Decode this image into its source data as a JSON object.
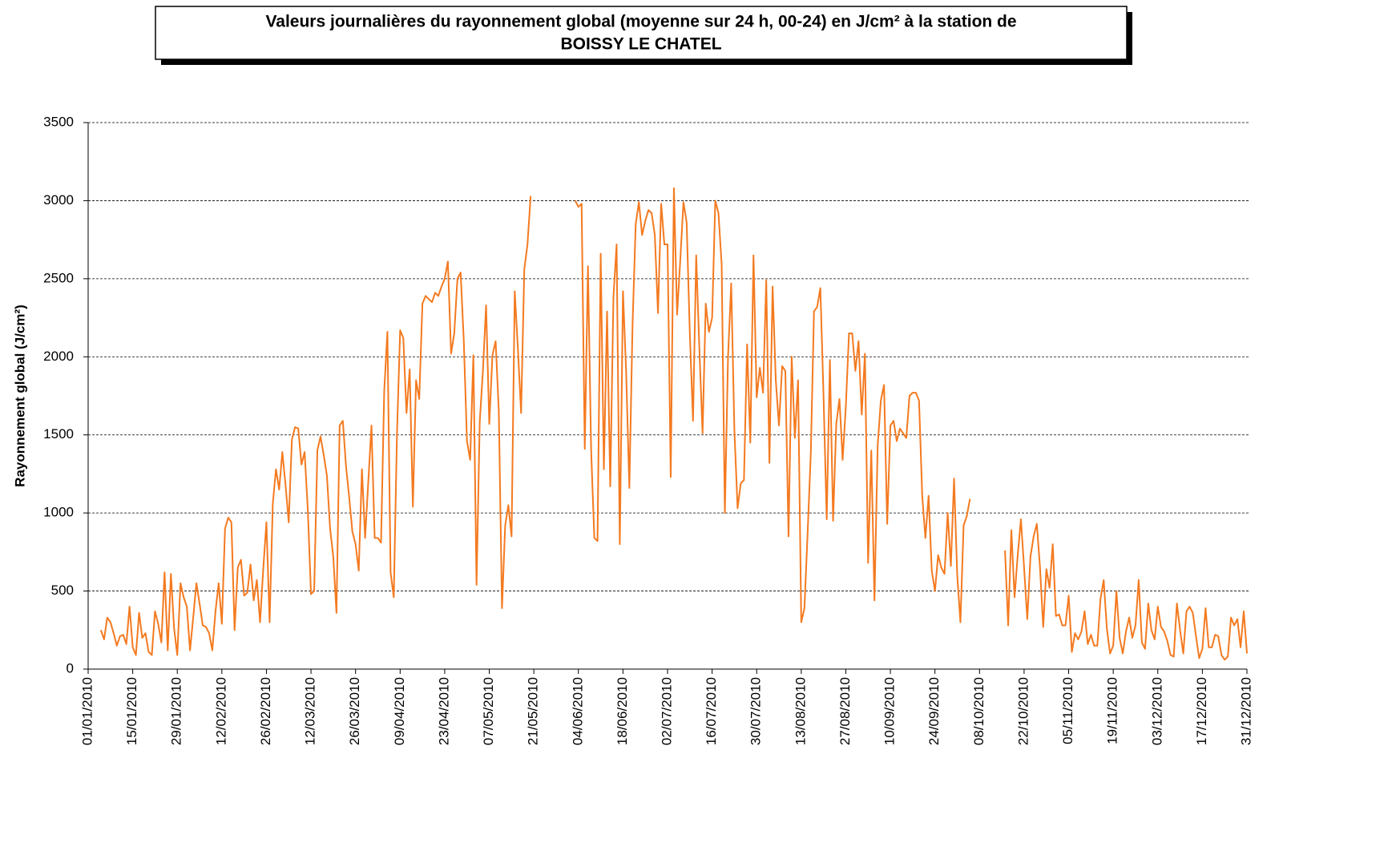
{
  "chart_data": {
    "type": "line",
    "title": [
      "Valeurs journalières du rayonnement global (moyenne sur 24 h, 00-24) en J/cm² à la station de",
      "BOISSY LE CHATEL"
    ],
    "y_label": "Rayonnement global (J/cm²)",
    "color": "#f47a20",
    "ylim": [
      0,
      3500
    ],
    "yticks": [
      0,
      500,
      1000,
      1500,
      2000,
      2500,
      3000,
      3500
    ],
    "grid": true,
    "categories": [
      "01/01/2010",
      null,
      null,
      null,
      null,
      null,
      null,
      null,
      null,
      null,
      null,
      null,
      null,
      null,
      "15/01/2010",
      null,
      null,
      null,
      null,
      null,
      null,
      null,
      null,
      null,
      null,
      null,
      null,
      null,
      "29/01/2010",
      null,
      null,
      null,
      null,
      null,
      null,
      null,
      null,
      null,
      null,
      null,
      null,
      null,
      "12/02/2010",
      null,
      null,
      null,
      null,
      null,
      null,
      null,
      null,
      null,
      null,
      null,
      null,
      null,
      "26/02/2010",
      null,
      null,
      null,
      null,
      null,
      null,
      null,
      null,
      null,
      null,
      null,
      null,
      null,
      "12/03/2010",
      null,
      null,
      null,
      null,
      null,
      null,
      null,
      null,
      null,
      null,
      null,
      null,
      null,
      "26/03/2010",
      null,
      null,
      null,
      null,
      null,
      null,
      null,
      null,
      null,
      null,
      null,
      null,
      null,
      "09/04/2010",
      null,
      null,
      null,
      null,
      null,
      null,
      null,
      null,
      null,
      null,
      null,
      null,
      null,
      "23/04/2010",
      null,
      null,
      null,
      null,
      null,
      null,
      null,
      null,
      null,
      null,
      null,
      null,
      null,
      "07/05/2010",
      null,
      null,
      null,
      null,
      null,
      null,
      null,
      null,
      null,
      null,
      null,
      null,
      null,
      "21/05/2010",
      null,
      null,
      null,
      null,
      null,
      null,
      null,
      null,
      null,
      null,
      null,
      null,
      null,
      "04/06/2010",
      null,
      null,
      null,
      null,
      null,
      null,
      null,
      null,
      null,
      null,
      null,
      null,
      null,
      "18/06/2010",
      null,
      null,
      null,
      null,
      null,
      null,
      null,
      null,
      null,
      null,
      null,
      null,
      null,
      "02/07/2010",
      null,
      null,
      null,
      null,
      null,
      null,
      null,
      null,
      null,
      null,
      null,
      null,
      null,
      "16/07/2010",
      null,
      null,
      null,
      null,
      null,
      null,
      null,
      null,
      null,
      null,
      null,
      null,
      null,
      "30/07/2010",
      null,
      null,
      null,
      null,
      null,
      null,
      null,
      null,
      null,
      null,
      null,
      null,
      null,
      "13/08/2010",
      null,
      null,
      null,
      null,
      null,
      null,
      null,
      null,
      null,
      null,
      null,
      null,
      null,
      "27/08/2010",
      null,
      null,
      null,
      null,
      null,
      null,
      null,
      null,
      null,
      null,
      null,
      null,
      null,
      "10/09/2010",
      null,
      null,
      null,
      null,
      null,
      null,
      null,
      null,
      null,
      null,
      null,
      null,
      null,
      "24/09/2010",
      null,
      null,
      null,
      null,
      null,
      null,
      null,
      null,
      null,
      null,
      null,
      null,
      null,
      "08/10/2010",
      null,
      null,
      null,
      null,
      null,
      null,
      null,
      null,
      null,
      null,
      null,
      null,
      null,
      "22/10/2010",
      null,
      null,
      null,
      null,
      null,
      null,
      null,
      null,
      null,
      null,
      null,
      null,
      null,
      "05/11/2010",
      null,
      null,
      null,
      null,
      null,
      null,
      null,
      null,
      null,
      null,
      null,
      null,
      null,
      "19/11/2010",
      null,
      null,
      null,
      null,
      null,
      null,
      null,
      null,
      null,
      null,
      null,
      null,
      null,
      "03/12/2010",
      null,
      null,
      null,
      null,
      null,
      null,
      null,
      null,
      null,
      null,
      null,
      null,
      null,
      "17/12/2010",
      null,
      null,
      null,
      null,
      null,
      null,
      null,
      null,
      null,
      null,
      null,
      null,
      null,
      "31/12/2010"
    ],
    "values": [
      null,
      null,
      null,
      null,
      250,
      190,
      330,
      300,
      230,
      150,
      210,
      220,
      160,
      400,
      140,
      90,
      360,
      200,
      230,
      110,
      90,
      370,
      290,
      170,
      620,
      120,
      610,
      260,
      90,
      550,
      460,
      400,
      120,
      330,
      550,
      420,
      280,
      270,
      230,
      120,
      370,
      550,
      290,
      900,
      970,
      940,
      250,
      650,
      700,
      470,
      490,
      670,
      440,
      570,
      300,
      640,
      940,
      300,
      1060,
      1280,
      1150,
      1390,
      1180,
      940,
      1470,
      1550,
      1540,
      1310,
      1390,
      1020,
      480,
      500,
      1400,
      1490,
      1370,
      1240,
      900,
      720,
      360,
      1560,
      1590,
      1300,
      1100,
      880,
      800,
      630,
      1280,
      840,
      1200,
      1560,
      840,
      840,
      810,
      1780,
      2160,
      620,
      460,
      1500,
      2170,
      2120,
      1640,
      1920,
      1040,
      1850,
      1730,
      2340,
      2390,
      2370,
      2350,
      2410,
      2390,
      2450,
      2500,
      2610,
      2020,
      2150,
      2500,
      2540,
      2100,
      1460,
      1340,
      2010,
      540,
      1580,
      1910,
      2330,
      1570,
      2010,
      2100,
      1650,
      390,
      920,
      1050,
      850,
      2420,
      2050,
      1640,
      2560,
      2720,
      3030,
      null,
      null,
      null,
      null,
      null,
      null,
      null,
      null,
      null,
      null,
      null,
      null,
      null,
      3000,
      2960,
      2980,
      1410,
      2580,
      1400,
      840,
      820,
      2660,
      1280,
      2290,
      1170,
      2380,
      2720,
      800,
      2420,
      1900,
      1160,
      2200,
      2850,
      2990,
      2780,
      2870,
      2940,
      2920,
      2780,
      2280,
      2980,
      2720,
      2720,
      1230,
      3080,
      2270,
      2620,
      2990,
      2860,
      2150,
      1590,
      2650,
      2050,
      1510,
      2340,
      2160,
      2250,
      3000,
      2920,
      2590,
      1000,
      2000,
      2470,
      1530,
      1030,
      1190,
      1210,
      2080,
      1450,
      2650,
      1740,
      1930,
      1770,
      2490,
      1320,
      2450,
      1850,
      1560,
      1940,
      1910,
      850,
      2000,
      1480,
      1850,
      300,
      390,
      870,
      1380,
      2290,
      2320,
      2440,
      1750,
      960,
      1980,
      950,
      1570,
      1730,
      1340,
      1680,
      2150,
      2150,
      1910,
      2100,
      1630,
      2020,
      680,
      1400,
      440,
      1430,
      1720,
      1820,
      930,
      1560,
      1590,
      1460,
      1540,
      1510,
      1480,
      1750,
      1770,
      1770,
      1720,
      1110,
      840,
      1110,
      630,
      500,
      730,
      650,
      610,
      1000,
      660,
      1220,
      600,
      300,
      920,
      980,
      1090,
      null,
      null,
      null,
      null,
      null,
      null,
      null,
      null,
      null,
      null,
      760,
      280,
      890,
      460,
      730,
      960,
      650,
      320,
      720,
      850,
      930,
      650,
      270,
      640,
      520,
      800,
      340,
      350,
      280,
      280,
      470,
      110,
      230,
      190,
      240,
      370,
      160,
      220,
      150,
      150,
      450,
      570,
      260,
      100,
      150,
      500,
      200,
      100,
      240,
      330,
      200,
      280,
      570,
      170,
      130,
      420,
      250,
      190,
      400,
      270,
      240,
      180,
      90,
      80,
      420,
      250,
      100,
      370,
      400,
      360,
      210,
      70,
      130,
      390,
      140,
      140,
      220,
      210,
      90,
      60,
      80,
      330,
      280,
      320,
      140,
      370,
      100
    ]
  }
}
